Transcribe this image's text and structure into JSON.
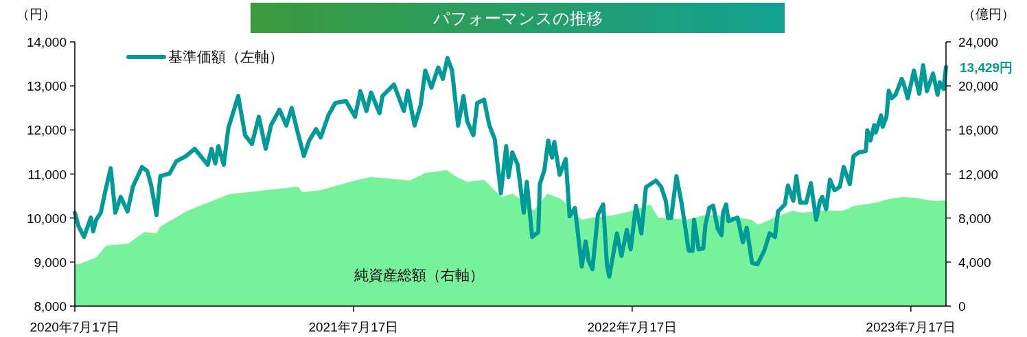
{
  "chart_data": {
    "type": "line",
    "title": "パフォーマンスの推移",
    "ylabel": "（円）",
    "y2label": "（億円）",
    "xlim": [
      "2020-07-17",
      "2023-09-01"
    ],
    "xticks": [
      {
        "value": "2020-07-17",
        "label": "2020年7月17日"
      },
      {
        "value": "2021-07-17",
        "label": "2021年7月17日"
      },
      {
        "value": "2022-07-17",
        "label": "2022年7月17日"
      },
      {
        "value": "2023-07-17",
        "label": "2023年7月17日"
      }
    ],
    "ylim": [
      8000,
      14000
    ],
    "yticks": [
      {
        "value": 8000,
        "label": "8,000"
      },
      {
        "value": 9000,
        "label": "9,000"
      },
      {
        "value": 10000,
        "label": "10,000"
      },
      {
        "value": 11000,
        "label": "11,000"
      },
      {
        "value": 12000,
        "label": "12,000"
      },
      {
        "value": 13000,
        "label": "13,000"
      },
      {
        "value": 14000,
        "label": "14,000"
      }
    ],
    "y2lim": [
      0,
      24000
    ],
    "y2ticks": [
      0,
      {
        "value": 4000,
        "label": "4,000"
      },
      {
        "value": 8000,
        "label": "8,000"
      },
      {
        "value": 12000,
        "label": "12,000"
      },
      {
        "value": 16000,
        "label": "16,000"
      },
      {
        "value": 20000,
        "label": "20,000"
      },
      {
        "value": 24000,
        "label": "24,000"
      }
    ],
    "grid": false,
    "legend": "top left",
    "line_style": "solid",
    "marker": "none",
    "annotations": [
      {
        "text": "13,429円",
        "x": "2023-09-01",
        "y": 13429
      }
    ],
    "series": [
      {
        "name": "純資産総額（右軸）",
        "type": "area",
        "axis": "y2",
        "color": "#76f29a",
        "x": [
          "2020-07-17",
          "2020-07-22",
          "2020-08-14",
          "2020-08-27",
          "2020-09-25",
          "2020-10-16",
          "2020-11-01",
          "2020-11-06",
          "2020-12-12",
          "2021-02-04",
          "2021-05-05",
          "2021-05-11",
          "2021-06-04",
          "2021-07-19",
          "2021-08-08",
          "2021-08-30",
          "2021-09-29",
          "2021-10-19",
          "2021-11-16",
          "2021-11-28",
          "2021-12-13",
          "2022-01-04",
          "2022-01-27",
          "2022-02-11",
          "2022-03-10",
          "2022-03-28",
          "2022-04-15",
          "2022-05-12",
          "2022-05-27",
          "2022-06-26",
          "2022-07-14",
          "2022-08-10",
          "2022-08-20",
          "2022-09-27",
          "2022-10-21",
          "2022-11-20",
          "2022-12-20",
          "2022-12-28",
          "2023-01-04",
          "2023-01-19",
          "2023-02-12",
          "2023-02-24",
          "2023-03-20",
          "2023-04-19",
          "2023-05-04",
          "2023-06-03",
          "2023-06-18",
          "2023-07-06",
          "2023-07-21",
          "2023-08-17",
          "2023-09-01"
        ],
        "values": [
          3870,
          3800,
          4430,
          5490,
          5670,
          6730,
          6610,
          7230,
          8670,
          10160,
          10850,
          10350,
          10540,
          11410,
          11720,
          11600,
          11410,
          12090,
          12340,
          11780,
          11280,
          11470,
          9910,
          10220,
          8670,
          10220,
          9730,
          7860,
          8040,
          8290,
          8600,
          9230,
          8040,
          7860,
          8290,
          8170,
          7860,
          7420,
          7540,
          8040,
          8670,
          8480,
          8670,
          8670,
          9100,
          9410,
          9730,
          9910,
          9850,
          9540,
          9600
        ]
      },
      {
        "name": "基準価額（左軸）",
        "color": "#009b98",
        "x": [
          "2020-07-17",
          "2020-07-22",
          "2020-07-29",
          "2020-08-07",
          "2020-08-10",
          "2020-08-14",
          "2020-08-20",
          "2020-08-26",
          "2020-09-02",
          "2020-09-08",
          "2020-09-15",
          "2020-09-24",
          "2020-10-01",
          "2020-10-13",
          "2020-10-20",
          "2020-10-25",
          "2020-11-01",
          "2020-11-06",
          "2020-11-18",
          "2020-11-27",
          "2020-12-09",
          "2020-12-21",
          "2021-01-07",
          "2021-01-12",
          "2021-01-17",
          "2021-01-21",
          "2021-01-28",
          "2021-02-03",
          "2021-02-16",
          "2021-02-25",
          "2021-03-06",
          "2021-03-15",
          "2021-03-24",
          "2021-03-31",
          "2021-04-11",
          "2021-04-20",
          "2021-04-27",
          "2021-05-05",
          "2021-05-13",
          "2021-05-20",
          "2021-05-29",
          "2021-06-04",
          "2021-06-14",
          "2021-06-23",
          "2021-07-07",
          "2021-07-19",
          "2021-07-26",
          "2021-08-03",
          "2021-08-09",
          "2021-08-20",
          "2021-08-24",
          "2021-09-08",
          "2021-09-21",
          "2021-09-26",
          "2021-10-05",
          "2021-10-13",
          "2021-10-19",
          "2021-10-27",
          "2021-11-05",
          "2021-11-11",
          "2021-11-17",
          "2021-11-23",
          "2021-12-01",
          "2021-12-08",
          "2021-12-13",
          "2021-12-21",
          "2021-12-26",
          "2022-01-04",
          "2022-01-11",
          "2022-01-18",
          "2022-01-26",
          "2022-02-02",
          "2022-02-05",
          "2022-02-10",
          "2022-02-17",
          "2022-02-25",
          "2022-03-01",
          "2022-03-08",
          "2022-03-16",
          "2022-03-18",
          "2022-03-24",
          "2022-03-29",
          "2022-04-03",
          "2022-04-06",
          "2022-04-13",
          "2022-04-21",
          "2022-04-26",
          "2022-05-03",
          "2022-05-12",
          "2022-05-17",
          "2022-05-21",
          "2022-05-26",
          "2022-06-02",
          "2022-06-09",
          "2022-06-14",
          "2022-06-17",
          "2022-06-27",
          "2022-07-03",
          "2022-07-10",
          "2022-07-15",
          "2022-07-22",
          "2022-07-29",
          "2022-08-04",
          "2022-08-17",
          "2022-08-24",
          "2022-08-30",
          "2022-09-02",
          "2022-09-06",
          "2022-09-13",
          "2022-09-20",
          "2022-09-29",
          "2022-10-04",
          "2022-10-06",
          "2022-10-12",
          "2022-10-18",
          "2022-10-21",
          "2022-10-26",
          "2022-10-31",
          "2022-11-06",
          "2022-11-11",
          "2022-11-13",
          "2022-11-17",
          "2022-11-20",
          "2022-12-02",
          "2022-12-09",
          "2022-12-14",
          "2022-12-21",
          "2022-12-28",
          "2023-01-06",
          "2023-01-13",
          "2023-01-20",
          "2023-01-24",
          "2023-02-02",
          "2023-02-06",
          "2023-02-13",
          "2023-02-17",
          "2023-02-22",
          "2023-03-02",
          "2023-03-08",
          "2023-03-15",
          "2023-03-20",
          "2023-03-23",
          "2023-03-28",
          "2023-04-02",
          "2023-04-08",
          "2023-04-15",
          "2023-04-20",
          "2023-04-28",
          "2023-05-03",
          "2023-05-10",
          "2023-05-19",
          "2023-05-21",
          "2023-05-25",
          "2023-05-30",
          "2023-06-01",
          "2023-06-08",
          "2023-06-10",
          "2023-06-15",
          "2023-06-18",
          "2023-06-22",
          "2023-06-27",
          "2023-07-05",
          "2023-07-07",
          "2023-07-13",
          "2023-07-21",
          "2023-07-28",
          "2023-08-02",
          "2023-08-07",
          "2023-08-15",
          "2023-08-21",
          "2023-08-24",
          "2023-08-29",
          "2023-09-01"
        ],
        "values": [
          10120,
          9810,
          9570,
          10010,
          9700,
          9960,
          10120,
          10620,
          11130,
          10120,
          10480,
          10150,
          10710,
          11160,
          11060,
          10740,
          10070,
          10950,
          11010,
          11290,
          11400,
          11570,
          11210,
          11570,
          11240,
          11630,
          11210,
          12040,
          12770,
          11880,
          11680,
          12300,
          11570,
          12110,
          12460,
          12100,
          12500,
          11940,
          11410,
          11760,
          12020,
          11830,
          12330,
          12610,
          12660,
          12300,
          12880,
          12430,
          12850,
          12380,
          12770,
          13030,
          12430,
          12890,
          12100,
          12570,
          13350,
          12960,
          13420,
          13160,
          13630,
          13360,
          12100,
          12770,
          12190,
          11880,
          12610,
          12690,
          12100,
          11790,
          10560,
          11630,
          10930,
          11490,
          11210,
          10120,
          10820,
          9570,
          9680,
          10770,
          11090,
          11760,
          11370,
          11730,
          10980,
          11340,
          10040,
          10230,
          8900,
          9470,
          9030,
          8840,
          10070,
          10310,
          8920,
          8670,
          9650,
          9140,
          9730,
          9290,
          10280,
          9650,
          10700,
          10850,
          10710,
          10390,
          10000,
          10000,
          10950,
          10310,
          9260,
          9260,
          9960,
          9290,
          9310,
          9860,
          10230,
          10280,
          9760,
          9610,
          10120,
          10310,
          9930,
          10010,
          9450,
          9780,
          8980,
          8950,
          9260,
          9650,
          9570,
          10150,
          10310,
          10740,
          10390,
          10950,
          10350,
          10350,
          10790,
          9960,
          10390,
          10480,
          10200,
          10870,
          10630,
          10710,
          11160,
          10770,
          11410,
          11490,
          11520,
          11990,
          11760,
          12110,
          11940,
          12330,
          12070,
          12300,
          12890,
          12720,
          12800,
          13160,
          13080,
          12720,
          13350,
          12820,
          13470,
          12880,
          13280,
          12800,
          13080,
          12930,
          13429
        ]
      }
    ]
  }
}
